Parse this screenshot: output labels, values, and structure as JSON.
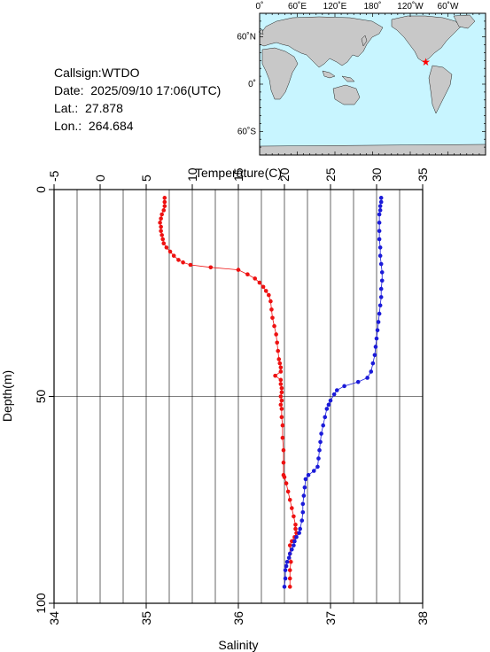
{
  "station": {
    "callsign_label": "Callsign:",
    "callsign": "WTDO",
    "date_label": "Date:",
    "date": "2025/09/10 17:06(UTC)",
    "lat_label": "Lat.:",
    "lat": "27.878",
    "lon_label": "Lon.:",
    "lon": "264.684"
  },
  "map": {
    "lon_labels": [
      "0˚",
      "60˚E",
      "120˚E",
      "180˚",
      "120˚W",
      "60˚W"
    ],
    "lat_labels": [
      "60˚N",
      "0˚",
      "60˚S"
    ],
    "ocean_color": "#c8f5ff",
    "land_color": "#c8c8c8",
    "marker_color": "#ff0000"
  },
  "chart_data": {
    "type": "line",
    "y_axis": {
      "label": "Depth(m)",
      "range": [
        0,
        100
      ],
      "inverted": true,
      "ticks": [
        0,
        50,
        100
      ]
    },
    "x_axis_top": {
      "label": "Temperature(C)",
      "range": [
        -5,
        35
      ],
      "ticks": [
        -5,
        0,
        5,
        10,
        15,
        20,
        25,
        30,
        35
      ]
    },
    "x_axis_bottom": {
      "label": "Salinity",
      "range": [
        34,
        38
      ],
      "ticks": [
        34,
        35,
        36,
        37,
        38
      ]
    },
    "grid": true,
    "series": [
      {
        "quantity": "Temperature(C)",
        "axis": "top",
        "color": "#ee1111",
        "points": [
          [
            7.0,
            2
          ],
          [
            7.0,
            3
          ],
          [
            7.0,
            4
          ],
          [
            6.9,
            5
          ],
          [
            6.7,
            6
          ],
          [
            6.6,
            7
          ],
          [
            6.5,
            8
          ],
          [
            6.6,
            9
          ],
          [
            6.6,
            10
          ],
          [
            6.7,
            11
          ],
          [
            6.8,
            12
          ],
          [
            6.9,
            13
          ],
          [
            7.2,
            14
          ],
          [
            7.6,
            15
          ],
          [
            8.0,
            16
          ],
          [
            8.5,
            17
          ],
          [
            9.0,
            17.6
          ],
          [
            9.8,
            18.2
          ],
          [
            12.0,
            18.8
          ],
          [
            15.0,
            19.4
          ],
          [
            16.0,
            20.5
          ],
          [
            16.8,
            21.5
          ],
          [
            17.3,
            22.5
          ],
          [
            17.7,
            23.5
          ],
          [
            18.0,
            24.5
          ],
          [
            18.3,
            25.5
          ],
          [
            18.5,
            27
          ],
          [
            18.6,
            29
          ],
          [
            18.7,
            31
          ],
          [
            18.9,
            33
          ],
          [
            19.1,
            35
          ],
          [
            19.2,
            37
          ],
          [
            19.3,
            39
          ],
          [
            19.4,
            41
          ],
          [
            19.5,
            42
          ],
          [
            19.6,
            43
          ],
          [
            19.6,
            44
          ],
          [
            19.0,
            45
          ],
          [
            19.6,
            46
          ],
          [
            19.6,
            47
          ],
          [
            19.7,
            48
          ],
          [
            19.7,
            49
          ],
          [
            19.6,
            50
          ],
          [
            19.7,
            51
          ],
          [
            19.6,
            52
          ],
          [
            19.7,
            53
          ],
          [
            19.7,
            55
          ],
          [
            19.8,
            57
          ],
          [
            19.8,
            60
          ],
          [
            19.9,
            63
          ],
          [
            19.9,
            66
          ],
          [
            19.9,
            69
          ],
          [
            20.0,
            69.5
          ],
          [
            20.2,
            71
          ],
          [
            20.4,
            73
          ],
          [
            20.6,
            75
          ],
          [
            20.8,
            77
          ],
          [
            21.0,
            79
          ],
          [
            21.2,
            81
          ],
          [
            21.2,
            82
          ],
          [
            21.3,
            83
          ],
          [
            21.1,
            84
          ],
          [
            20.8,
            85
          ],
          [
            20.6,
            86
          ],
          [
            20.6,
            88
          ],
          [
            20.7,
            90
          ],
          [
            20.6,
            92
          ],
          [
            20.6,
            94
          ],
          [
            20.6,
            96
          ]
        ]
      },
      {
        "quantity": "Salinity",
        "axis": "bottom",
        "color": "#1a1ad9",
        "points": [
          [
            37.55,
            2
          ],
          [
            37.55,
            3
          ],
          [
            37.54,
            4
          ],
          [
            37.54,
            5
          ],
          [
            37.53,
            6
          ],
          [
            37.53,
            8
          ],
          [
            37.53,
            10
          ],
          [
            37.53,
            12
          ],
          [
            37.54,
            14
          ],
          [
            37.54,
            16
          ],
          [
            37.55,
            18
          ],
          [
            37.56,
            20
          ],
          [
            37.56,
            22
          ],
          [
            37.55,
            24
          ],
          [
            37.55,
            26
          ],
          [
            37.54,
            28
          ],
          [
            37.53,
            30
          ],
          [
            37.52,
            32
          ],
          [
            37.51,
            34
          ],
          [
            37.5,
            36
          ],
          [
            37.49,
            38
          ],
          [
            37.48,
            40
          ],
          [
            37.46,
            42
          ],
          [
            37.44,
            44
          ],
          [
            37.4,
            45.5
          ],
          [
            37.3,
            46.5
          ],
          [
            37.15,
            47.5
          ],
          [
            37.07,
            48.5
          ],
          [
            37.04,
            49.5
          ],
          [
            37.0,
            51
          ],
          [
            36.98,
            52
          ],
          [
            36.96,
            53
          ],
          [
            36.94,
            55
          ],
          [
            36.92,
            57
          ],
          [
            36.9,
            59
          ],
          [
            36.89,
            61
          ],
          [
            36.88,
            63
          ],
          [
            36.87,
            65
          ],
          [
            36.86,
            67
          ],
          [
            36.82,
            68
          ],
          [
            36.76,
            69
          ],
          [
            36.73,
            70
          ],
          [
            36.72,
            72
          ],
          [
            36.71,
            74
          ],
          [
            36.7,
            76
          ],
          [
            36.7,
            78
          ],
          [
            36.69,
            80
          ],
          [
            36.67,
            82
          ],
          [
            36.66,
            83
          ],
          [
            36.63,
            84
          ],
          [
            36.61,
            85
          ],
          [
            36.6,
            86
          ],
          [
            36.58,
            87
          ],
          [
            36.56,
            88
          ],
          [
            36.55,
            89
          ],
          [
            36.53,
            90
          ],
          [
            36.52,
            91
          ],
          [
            36.51,
            92
          ],
          [
            36.51,
            94
          ],
          [
            36.5,
            96
          ]
        ]
      }
    ]
  }
}
